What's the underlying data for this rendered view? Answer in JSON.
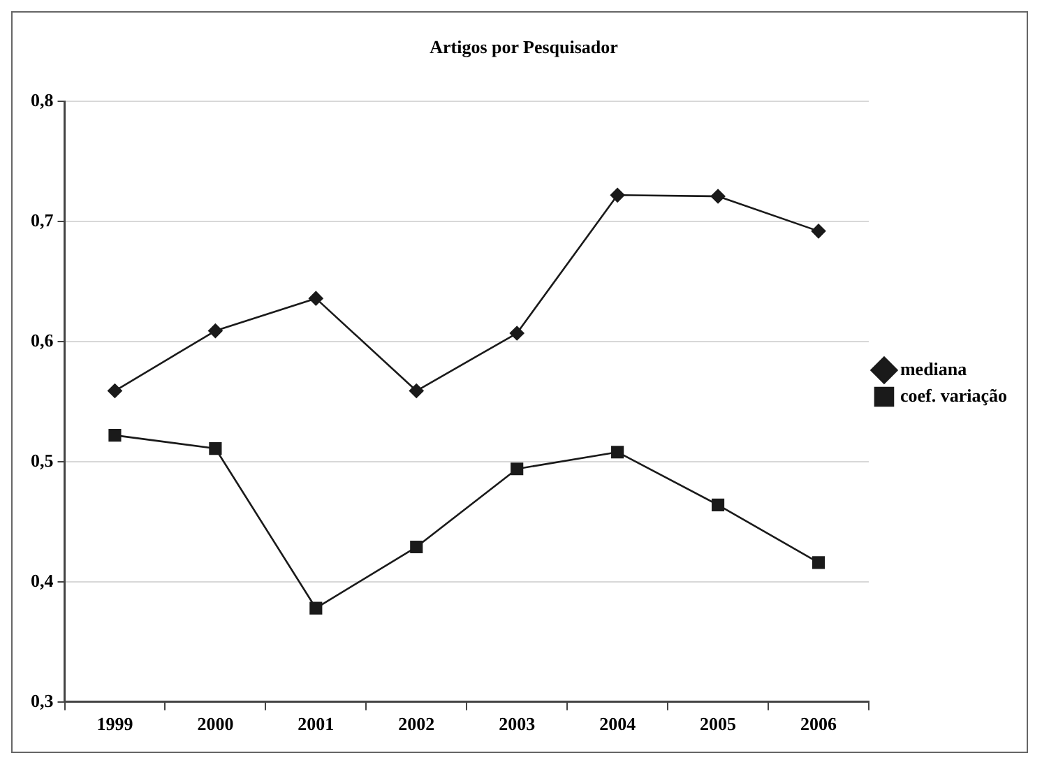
{
  "chart_data": {
    "type": "line",
    "title": "Artigos por Pesquisador",
    "categories": [
      "1999",
      "2000",
      "2001",
      "2002",
      "2003",
      "2004",
      "2005",
      "2006"
    ],
    "series": [
      {
        "name": "mediana",
        "color": "#1a1a1a",
        "marker": "diamond",
        "values": [
          0.559,
          0.609,
          0.636,
          0.559,
          0.607,
          0.722,
          0.721,
          0.692
        ]
      },
      {
        "name": "coef. variação",
        "color": "#1a1a1a",
        "marker": "square",
        "values": [
          0.522,
          0.511,
          0.378,
          0.429,
          0.494,
          0.508,
          0.464,
          0.416
        ]
      }
    ],
    "ylim": [
      0.3,
      0.8
    ],
    "yticks": [
      {
        "value": 0.3,
        "label": "0,3"
      },
      {
        "value": 0.4,
        "label": "0,4"
      },
      {
        "value": 0.5,
        "label": "0,5"
      },
      {
        "value": 0.6,
        "label": "0,6"
      },
      {
        "value": 0.7,
        "label": "0,7"
      },
      {
        "value": 0.8,
        "label": "0,8"
      }
    ],
    "grid": "y",
    "legend": "right",
    "line_style": "solid"
  }
}
